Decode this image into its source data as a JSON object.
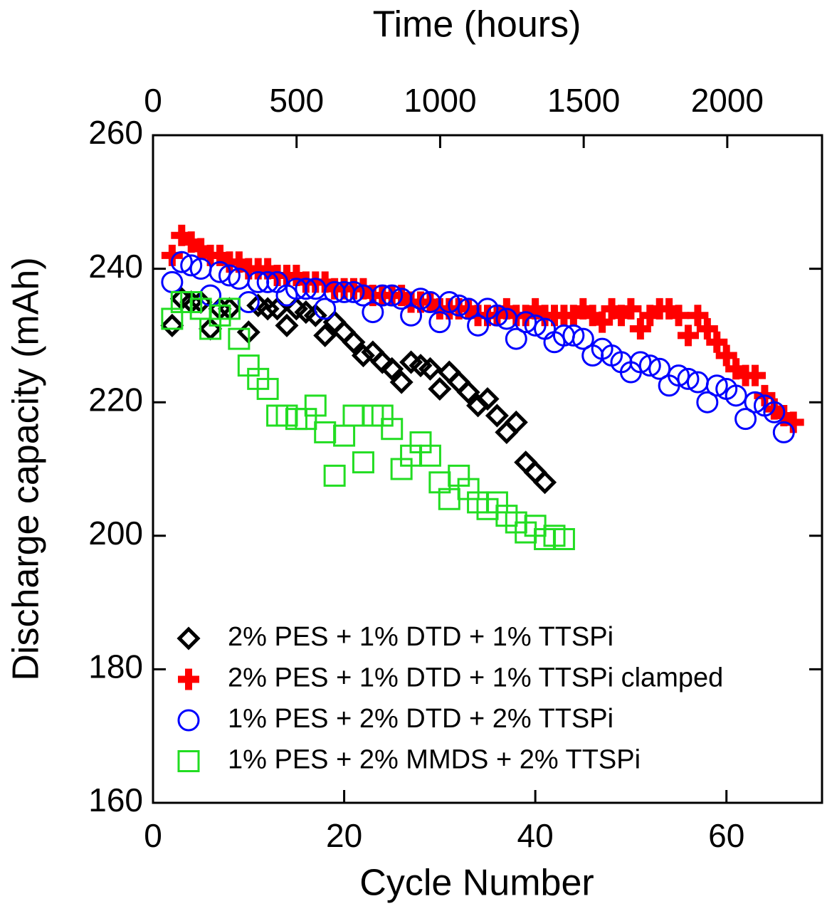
{
  "chart_data": {
    "type": "scatter",
    "x_label": "Cycle Number",
    "x2_label": "Time (hours)",
    "y_label": "Discharge capacity (mAh)",
    "xlim": [
      0,
      70
    ],
    "xticks": [
      0,
      20,
      40,
      60
    ],
    "x2lim": [
      0,
      2330
    ],
    "x2ticks": [
      0,
      500,
      1000,
      1500,
      2000
    ],
    "ylim": [
      160,
      260
    ],
    "yticks": [
      160,
      180,
      200,
      220,
      240,
      260
    ],
    "legend": "lower left",
    "series": [
      {
        "name": "2% PES + 1% DTD + 1% TTSPi",
        "color": "#000000",
        "marker": "diamond",
        "x": [
          2,
          3,
          4,
          5,
          6,
          7,
          8,
          10,
          11,
          12,
          13,
          14,
          15,
          16,
          17,
          18,
          19,
          20,
          21,
          22,
          23,
          24,
          25,
          26,
          27,
          28,
          29,
          30,
          31,
          32,
          33,
          34,
          35,
          36,
          37,
          38,
          39,
          40,
          41
        ],
        "values": [
          231.5,
          235.5,
          235,
          235,
          231,
          234,
          234,
          230.5,
          234.5,
          234,
          234,
          231.5,
          234,
          233.5,
          233,
          230,
          232,
          230.5,
          229,
          227,
          227.5,
          226,
          225,
          223,
          226,
          225.5,
          225,
          222,
          224.5,
          223,
          221.5,
          219.5,
          220.5,
          218,
          215.5,
          217,
          211,
          209.5,
          208
        ]
      },
      {
        "name": "2% PES + 1% DTD + 1% TTSPi clamped",
        "color": "#ff0000",
        "marker": "plus",
        "x": [
          2,
          3,
          4,
          5,
          6,
          7,
          8,
          9,
          10,
          11,
          12,
          13,
          14,
          15,
          16,
          17,
          18,
          19,
          20,
          21,
          22,
          23,
          24,
          25,
          26,
          27,
          28,
          29,
          30,
          31,
          32,
          33,
          34,
          35,
          36,
          37,
          38,
          39,
          40,
          41,
          42,
          43,
          44,
          45,
          46,
          47,
          48,
          49,
          50,
          51,
          52,
          53,
          54,
          55,
          56,
          57,
          58,
          59,
          60,
          61,
          62,
          63,
          64,
          65,
          66,
          67
        ],
        "values": [
          242,
          245,
          244,
          243,
          242,
          242,
          241,
          241,
          240,
          240,
          240,
          239,
          239,
          239,
          238,
          238,
          238,
          237,
          237,
          237,
          237,
          236,
          236,
          236,
          236,
          235,
          235,
          235,
          234,
          234,
          234,
          234,
          233,
          233,
          233,
          234,
          233,
          233,
          234,
          233,
          233,
          233,
          233,
          234,
          233,
          232,
          234,
          233,
          234,
          231,
          233,
          234,
          234,
          233,
          230,
          233,
          231,
          229,
          227,
          225,
          224,
          224,
          221,
          219,
          218,
          217
        ]
      },
      {
        "name": "1% PES + 2% DTD + 2% TTSPi",
        "color": "#0000ff",
        "marker": "circle",
        "x": [
          2,
          3,
          4,
          5,
          6,
          7,
          8,
          9,
          10,
          11,
          12,
          13,
          14,
          15,
          16,
          17,
          18,
          19,
          20,
          21,
          22,
          23,
          24,
          25,
          26,
          27,
          28,
          29,
          30,
          31,
          32,
          33,
          34,
          35,
          36,
          37,
          38,
          39,
          40,
          41,
          42,
          43,
          44,
          45,
          46,
          47,
          48,
          49,
          50,
          51,
          52,
          53,
          54,
          55,
          56,
          57,
          58,
          59,
          60,
          61,
          62,
          63,
          64,
          65,
          66
        ],
        "values": [
          238,
          241,
          240.5,
          240,
          236,
          239.5,
          239,
          238.5,
          235,
          238,
          238,
          238,
          236,
          237,
          237,
          237,
          234,
          236.5,
          236.5,
          236.5,
          236,
          233.5,
          236,
          236,
          235.5,
          233,
          235.5,
          235,
          232,
          235,
          234.5,
          234,
          231.5,
          234,
          233,
          232.5,
          229.5,
          232,
          231.5,
          231,
          229,
          230,
          230,
          229.5,
          227,
          228,
          227,
          226,
          224.5,
          226,
          225.5,
          225,
          222.5,
          224,
          223.5,
          223,
          220,
          222.5,
          222,
          221,
          217.5,
          220,
          219.5,
          218.5,
          215.5
        ]
      },
      {
        "name": "1% PES + 2% MMDS + 2% TTSPi",
        "color": "#22dd22",
        "marker": "square",
        "x": [
          2,
          3,
          4,
          5,
          6,
          7,
          8,
          9,
          10,
          11,
          12,
          13,
          14,
          15,
          16,
          17,
          18,
          19,
          20,
          21,
          22,
          23,
          24,
          25,
          26,
          27,
          28,
          29,
          30,
          31,
          32,
          33,
          34,
          35,
          36,
          37,
          38,
          39,
          40,
          41,
          42,
          43
        ],
        "values": [
          232.5,
          235,
          235,
          234,
          231,
          233,
          234,
          229.5,
          225.5,
          223.5,
          222,
          218,
          218,
          217.5,
          217.5,
          219.5,
          215.5,
          209,
          215,
          218,
          211,
          218,
          218,
          216,
          210,
          212,
          214,
          212,
          208,
          205.5,
          209,
          207,
          205,
          204,
          205,
          203,
          202,
          200.5,
          201.5,
          199.5,
          200,
          199.5
        ]
      }
    ]
  }
}
